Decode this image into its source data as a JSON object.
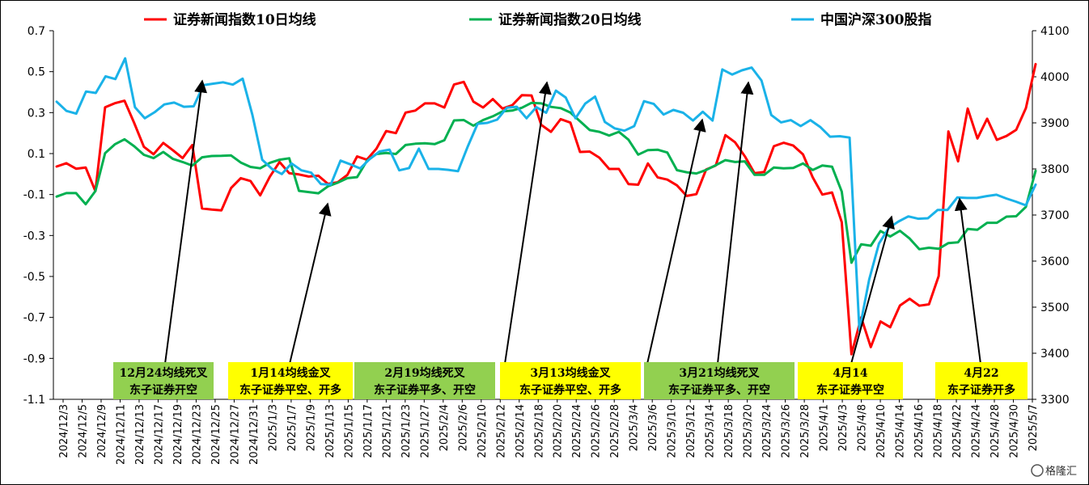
{
  "chart_data": {
    "type": "line",
    "x_labels": [
      "2024/12/3",
      "2024/12/5",
      "2024/12/9",
      "2024/12/11",
      "2024/12/13",
      "2024/12/17",
      "2024/12/19",
      "2024/12/23",
      "2024/12/25",
      "2024/12/27",
      "2024/12/31",
      "2025/1/3",
      "2025/1/7",
      "2025/1/9",
      "2025/1/13",
      "2025/1/15",
      "2025/1/17",
      "2025/1/21",
      "2025/1/23",
      "2025/1/27",
      "2025/2/4",
      "2025/2/6",
      "2025/2/10",
      "2025/2/12",
      "2025/2/14",
      "2025/2/18",
      "2025/2/20",
      "2025/2/24",
      "2025/2/26",
      "2025/2/28",
      "2025/3/4",
      "2025/3/6",
      "2025/3/10",
      "2025/3/12",
      "2025/3/14",
      "2025/3/18",
      "2025/3/20",
      "2025/3/24",
      "2025/3/26",
      "2025/3/28",
      "2025/4/1",
      "2025/4/3",
      "2025/4/8",
      "2025/4/10",
      "2025/4/14",
      "2025/4/16",
      "2025/4/18",
      "2025/4/22",
      "2025/4/24",
      "2025/4/28",
      "2025/4/30",
      "2025/5/7"
    ],
    "y_left": {
      "min": -1.1,
      "max": 0.7,
      "ticks": [
        "0.7",
        "0.5",
        "0.3",
        "0.1",
        "-0.1",
        "-0.3",
        "-0.5",
        "-0.7",
        "-0.9",
        "-1.1"
      ]
    },
    "y_right": {
      "min": 3300,
      "max": 4100,
      "ticks": [
        "4100",
        "4000",
        "3900",
        "3800",
        "3700",
        "3600",
        "3500",
        "3400",
        "3300"
      ]
    },
    "series": [
      {
        "name": "证券新闻指数10日均线",
        "color": "#ff0000",
        "axis": "left",
        "values": [
          0.037,
          0.053,
          0.026,
          0.032,
          -0.083,
          0.326,
          0.346,
          0.358,
          0.25,
          0.133,
          0.097,
          0.152,
          0.116,
          0.078,
          0.142,
          -0.168,
          -0.173,
          -0.177,
          -0.068,
          -0.02,
          -0.034,
          -0.104,
          -0.012,
          0.059,
          0.004,
          -0.002,
          -0.012,
          -0.008,
          -0.048,
          -0.04,
          -0.004,
          0.086,
          0.07,
          0.124,
          0.21,
          0.2,
          0.3,
          0.31,
          0.345,
          0.345,
          0.325,
          0.437,
          0.45,
          0.354,
          0.325,
          0.366,
          0.32,
          0.336,
          0.385,
          0.384,
          0.24,
          0.206,
          0.268,
          0.251,
          0.108,
          0.11,
          0.08,
          0.025,
          0.025,
          -0.049,
          -0.052,
          0.052,
          -0.016,
          -0.027,
          -0.055,
          -0.107,
          -0.098,
          0.022,
          0.042,
          0.19,
          0.155,
          0.087,
          0.004,
          0.01,
          0.136,
          0.153,
          0.139,
          0.096,
          -0.016,
          -0.1,
          -0.09,
          -0.235,
          -0.88,
          -0.7,
          -0.845,
          -0.72,
          -0.748,
          -0.642,
          -0.609,
          -0.643,
          -0.636,
          -0.498,
          0.208,
          0.062,
          0.32,
          0.174,
          0.27,
          0.167,
          0.186,
          0.216,
          0.322,
          0.537
        ]
      },
      {
        "name": "证券新闻指数20日均线",
        "color": "#00b050",
        "axis": "left",
        "values": [
          -0.11,
          -0.093,
          -0.093,
          -0.147,
          -0.083,
          0.102,
          0.145,
          0.17,
          0.136,
          0.094,
          0.078,
          0.108,
          0.074,
          0.059,
          0.041,
          0.082,
          0.088,
          0.089,
          0.091,
          0.056,
          0.035,
          0.028,
          0.055,
          0.07,
          0.077,
          -0.082,
          -0.088,
          -0.094,
          -0.06,
          -0.042,
          -0.02,
          -0.015,
          0.064,
          0.098,
          0.103,
          0.098,
          0.142,
          0.148,
          0.15,
          0.146,
          0.165,
          0.262,
          0.264,
          0.236,
          0.264,
          0.282,
          0.306,
          0.31,
          0.324,
          0.348,
          0.345,
          0.328,
          0.322,
          0.3,
          0.258,
          0.215,
          0.206,
          0.188,
          0.206,
          0.168,
          0.095,
          0.117,
          0.119,
          0.105,
          0.019,
          0.009,
          0.003,
          0.02,
          0.043,
          0.068,
          0.059,
          0.062,
          -0.004,
          -0.004,
          0.032,
          0.028,
          0.03,
          0.052,
          0.02,
          0.042,
          0.036,
          -0.086,
          -0.433,
          -0.343,
          -0.35,
          -0.278,
          -0.305,
          -0.277,
          -0.315,
          -0.367,
          -0.36,
          -0.365,
          -0.337,
          -0.333,
          -0.268,
          -0.272,
          -0.238,
          -0.238,
          -0.208,
          -0.206,
          -0.16,
          0.016
        ]
      },
      {
        "name": "中国沪深300股指",
        "color": "#1ab2e8",
        "axis": "right",
        "values": [
          3946,
          3926,
          3920,
          3968,
          3965,
          4001,
          3995,
          4040,
          3934,
          3910,
          3923,
          3940,
          3944,
          3935,
          3936,
          3982,
          3985,
          3988,
          3983,
          3996,
          3917,
          3820,
          3800,
          3789,
          3812,
          3797,
          3792,
          3767,
          3766,
          3818,
          3810,
          3801,
          3822,
          3838,
          3842,
          3797,
          3802,
          3844,
          3800,
          3800,
          3798,
          3795,
          3849,
          3898,
          3900,
          3907,
          3933,
          3935,
          3910,
          3934,
          3922,
          3970,
          3955,
          3910,
          3942,
          3957,
          3902,
          3888,
          3883,
          3893,
          3947,
          3941,
          3918,
          3928,
          3922,
          3905,
          3924,
          3905,
          4016,
          4005,
          4014,
          4020,
          3992,
          3917,
          3901,
          3906,
          3893,
          3906,
          3891,
          3870,
          3871,
          3868,
          3450,
          3560,
          3638,
          3672,
          3686,
          3697,
          3692,
          3693,
          3711,
          3711,
          3738,
          3737,
          3737,
          3741,
          3744,
          3736,
          3729,
          3721,
          3766
        ]
      }
    ],
    "annotations": [
      {
        "line1": "12月24均线死叉",
        "line2": "东子证券开空",
        "bg": "#92d050"
      },
      {
        "line1": "1月14均线金叉",
        "line2": "东子证券平空、开多",
        "bg": "#ffff00"
      },
      {
        "line1": "2月19均线死叉",
        "line2": "东子证券平多、开空",
        "bg": "#92d050"
      },
      {
        "line1": "3月13均线金叉",
        "line2": "东子证券平空、开多",
        "bg": "#ffff00"
      },
      {
        "line1": "3月21均线死叉",
        "line2": "东子证券平多、开空",
        "bg": "#92d050"
      },
      {
        "line1": "4月14",
        "line2": "东子证券平空",
        "bg": "#ffff00"
      },
      {
        "line1": "4月22",
        "line2": "东子证券开多",
        "bg": "#ffff00"
      }
    ],
    "watermark": "格隆汇"
  }
}
